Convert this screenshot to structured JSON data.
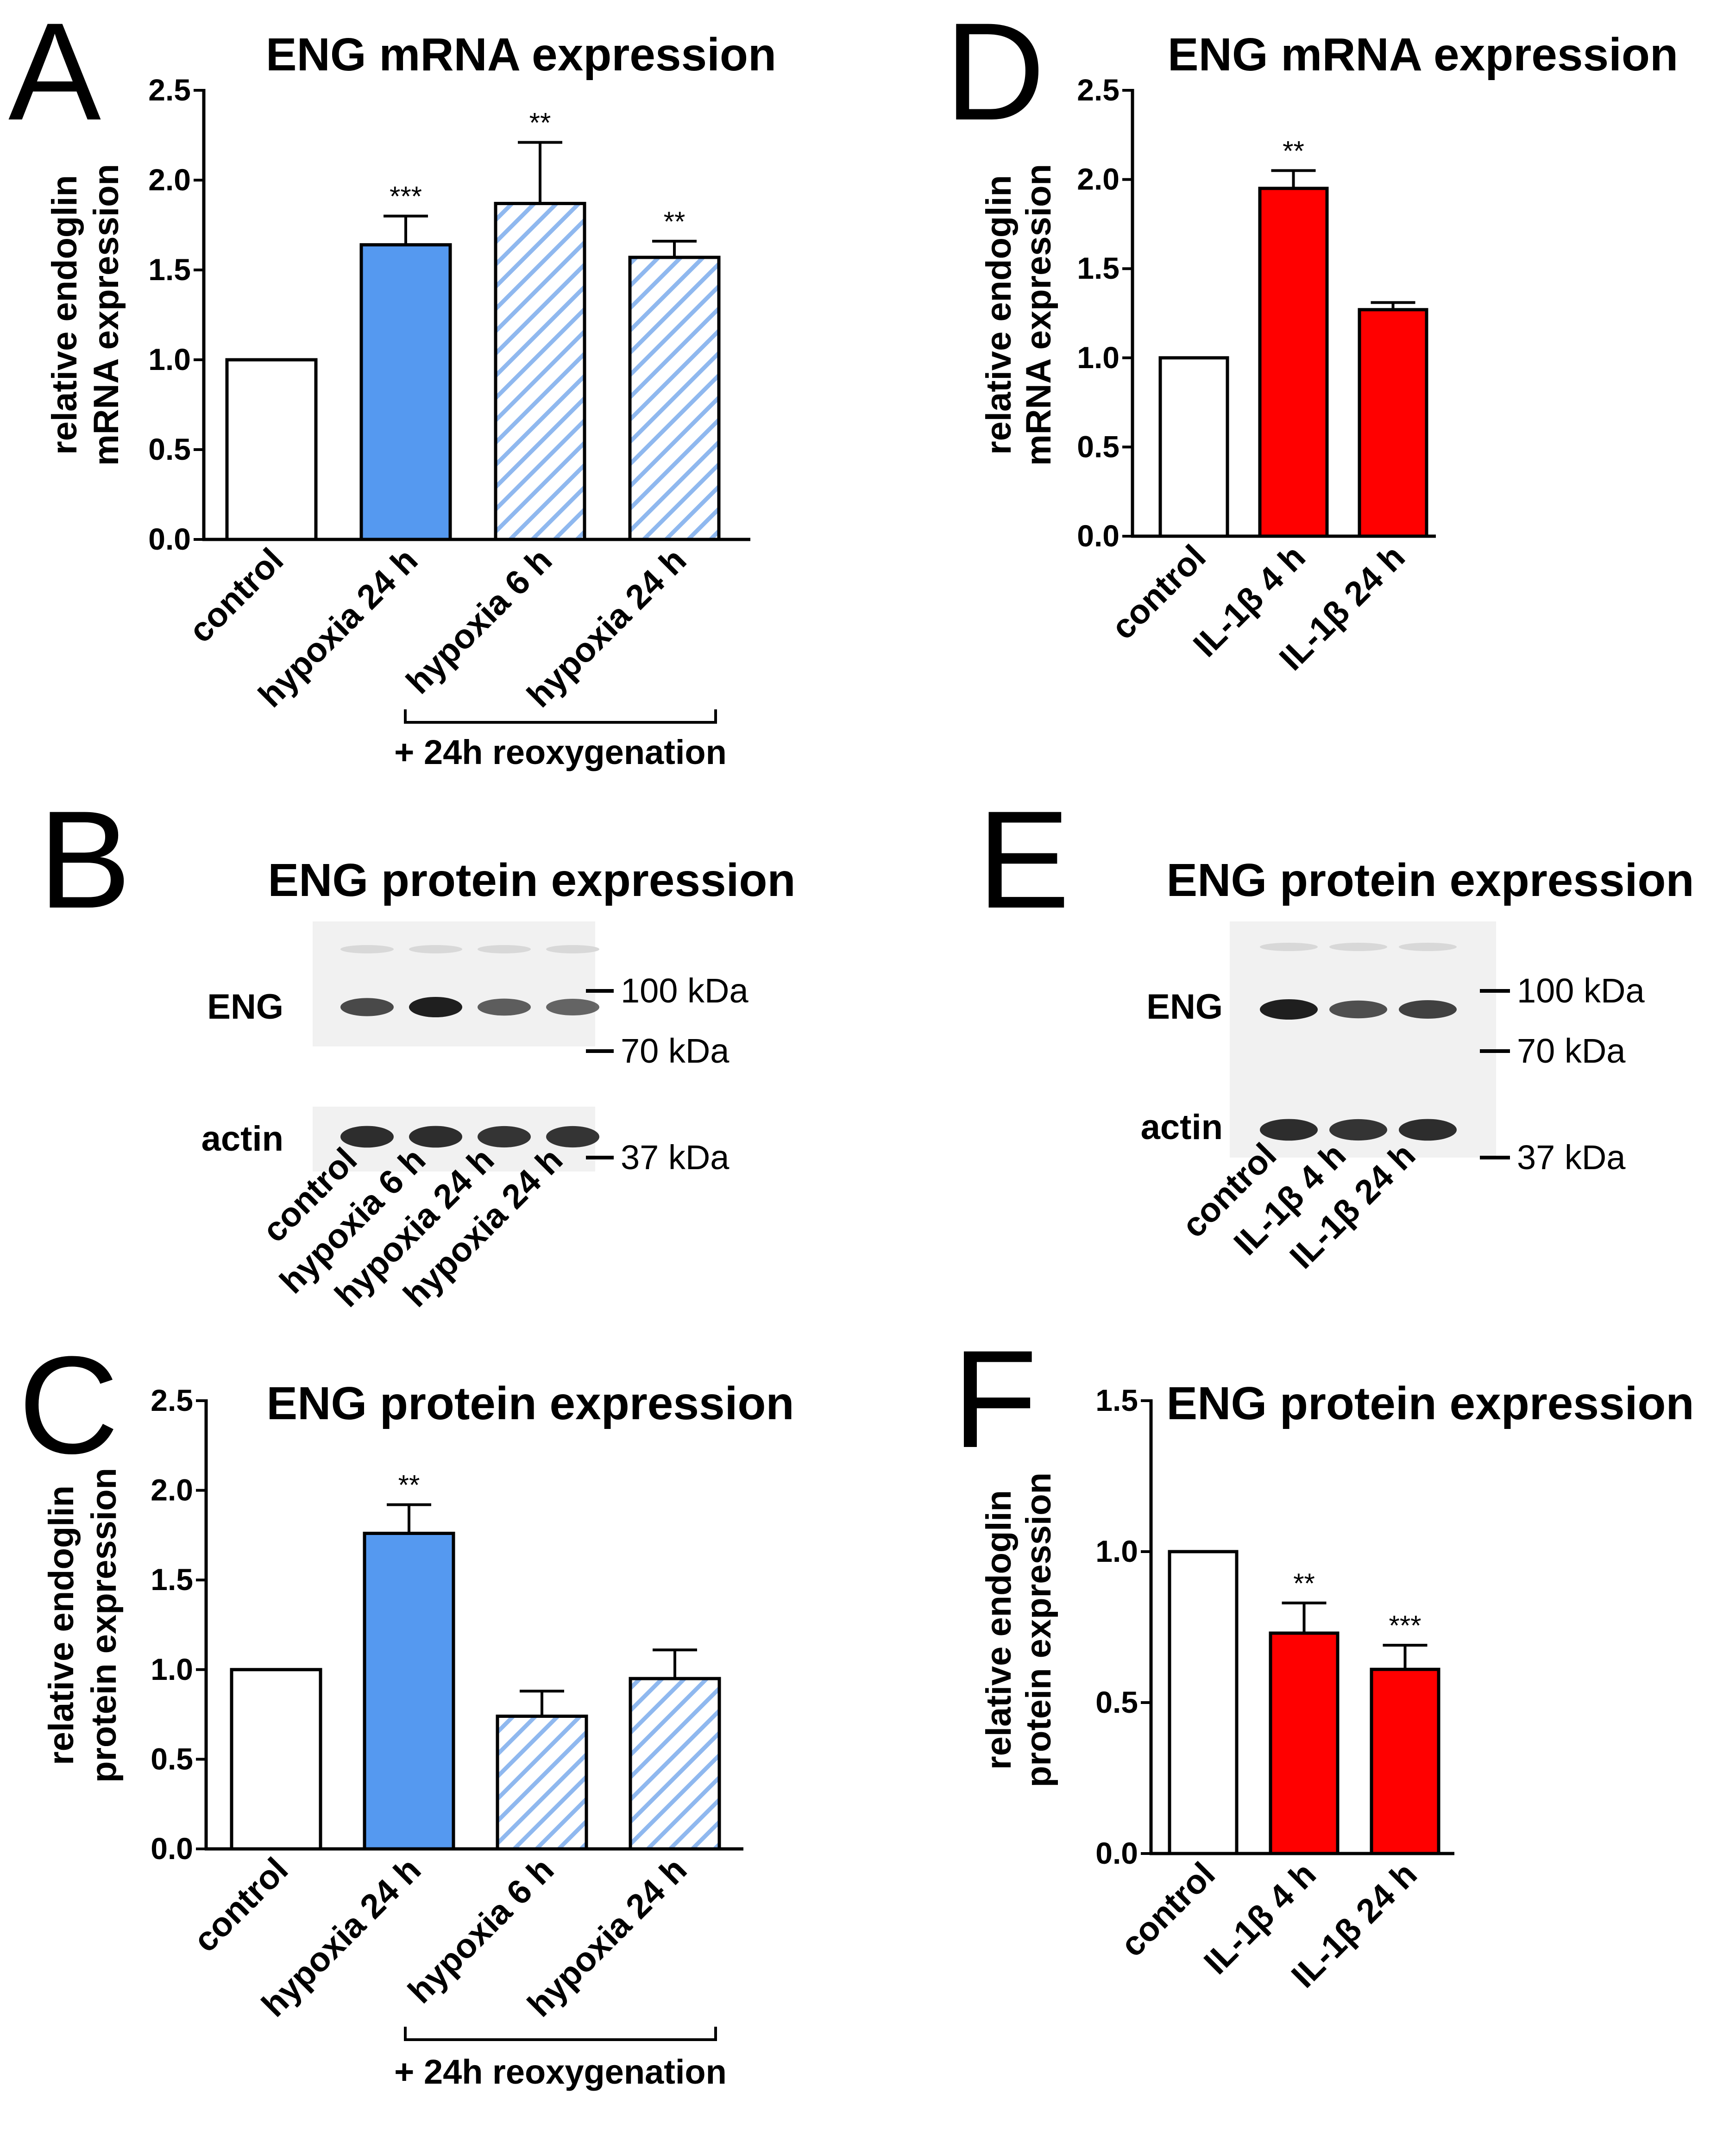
{
  "colors": {
    "blue": "#5599f0",
    "red": "#ff0000",
    "white": "#ffffff",
    "hatch_blue": "#8fb8ef",
    "axis": "#000000",
    "blot_bg": "#f1f1f1",
    "band": "#1f1f1f"
  },
  "chart_data": [
    {
      "panel": "A",
      "type": "bar",
      "title": "ENG mRNA expression",
      "ylabel_line1": "relative endoglin",
      "ylabel_line2": "mRNA expression",
      "ylim": [
        0,
        2.5
      ],
      "ticks": [
        "0.0",
        "0.5",
        "1.0",
        "1.5",
        "2.0",
        "2.5"
      ],
      "categories": [
        "control",
        "hypoxia 24 h",
        "hypoxia 6 h",
        "hypoxia 24 h"
      ],
      "values": [
        1.0,
        1.64,
        1.87,
        1.57
      ],
      "errors": [
        0,
        0.16,
        0.34,
        0.09
      ],
      "significance": [
        "",
        "***",
        "**",
        "**"
      ],
      "fills": [
        "white",
        "blue",
        "hatch",
        "hatch"
      ],
      "bracket_label": "+ 24h reoxygenation"
    },
    {
      "panel": "C",
      "type": "bar",
      "title": "ENG protein expression",
      "ylabel_line1": "relative endoglin",
      "ylabel_line2": "protein expression",
      "ylim": [
        0,
        2.5
      ],
      "ticks": [
        "0.0",
        "0.5",
        "1.0",
        "1.5",
        "2.0",
        "2.5"
      ],
      "categories": [
        "control",
        "hypoxia 24 h",
        "hypoxia 6 h",
        "hypoxia 24 h"
      ],
      "values": [
        1.0,
        1.76,
        0.74,
        0.95
      ],
      "errors": [
        0,
        0.16,
        0.14,
        0.16
      ],
      "significance": [
        "",
        "**",
        "",
        ""
      ],
      "fills": [
        "white",
        "blue",
        "hatch",
        "hatch"
      ],
      "bracket_label": "+ 24h reoxygenation"
    },
    {
      "panel": "D",
      "type": "bar",
      "title": "ENG mRNA expression",
      "ylabel_line1": "relative endoglin",
      "ylabel_line2": "mRNA expression",
      "ylim": [
        0,
        2.5
      ],
      "ticks": [
        "0.0",
        "0.5",
        "1.0",
        "1.5",
        "2.0",
        "2.5"
      ],
      "categories": [
        "control",
        "IL-1β 4 h",
        "IL-1β 24 h"
      ],
      "values": [
        1.0,
        1.95,
        1.27
      ],
      "errors": [
        0,
        0.1,
        0.04
      ],
      "significance": [
        "",
        "**",
        ""
      ],
      "fills": [
        "white",
        "red",
        "red"
      ]
    },
    {
      "panel": "F",
      "type": "bar",
      "title": "ENG protein expression",
      "ylabel_line1": "relative endoglin",
      "ylabel_line2": "protein expression",
      "ylim": [
        0,
        1.5
      ],
      "ticks": [
        "0.0",
        "0.5",
        "1.0",
        "1.5"
      ],
      "categories": [
        "control",
        "IL-1β 4 h",
        "IL-1β 24 h"
      ],
      "values": [
        1.0,
        0.73,
        0.61
      ],
      "errors": [
        0,
        0.1,
        0.08
      ],
      "significance": [
        "",
        "**",
        "***"
      ],
      "fills": [
        "white",
        "red",
        "red"
      ]
    }
  ],
  "blots": [
    {
      "panel": "B",
      "title": "ENG protein expression",
      "row_labels": [
        "ENG",
        "actin"
      ],
      "markers": [
        "100 kDa",
        "70 kDa",
        "37 kDa"
      ],
      "lanes": [
        "control",
        "hypoxia 6 h",
        "hypoxia 24 h",
        "hypoxia 24 h"
      ],
      "eng_band_intensity": [
        0.7,
        1.0,
        0.55,
        0.5
      ],
      "actin_band_intensity": [
        0.9,
        0.9,
        0.85,
        0.85
      ]
    },
    {
      "panel": "E",
      "title": "ENG protein expression",
      "row_labels": [
        "ENG",
        "actin"
      ],
      "markers": [
        "100 kDa",
        "70 kDa",
        "37 kDa"
      ],
      "lanes": [
        "control",
        "IL-1β 4 h",
        "IL-1β 24 h"
      ],
      "eng_band_intensity": [
        1.0,
        0.65,
        0.75
      ],
      "actin_band_intensity": [
        0.9,
        0.85,
        0.9
      ]
    }
  ]
}
